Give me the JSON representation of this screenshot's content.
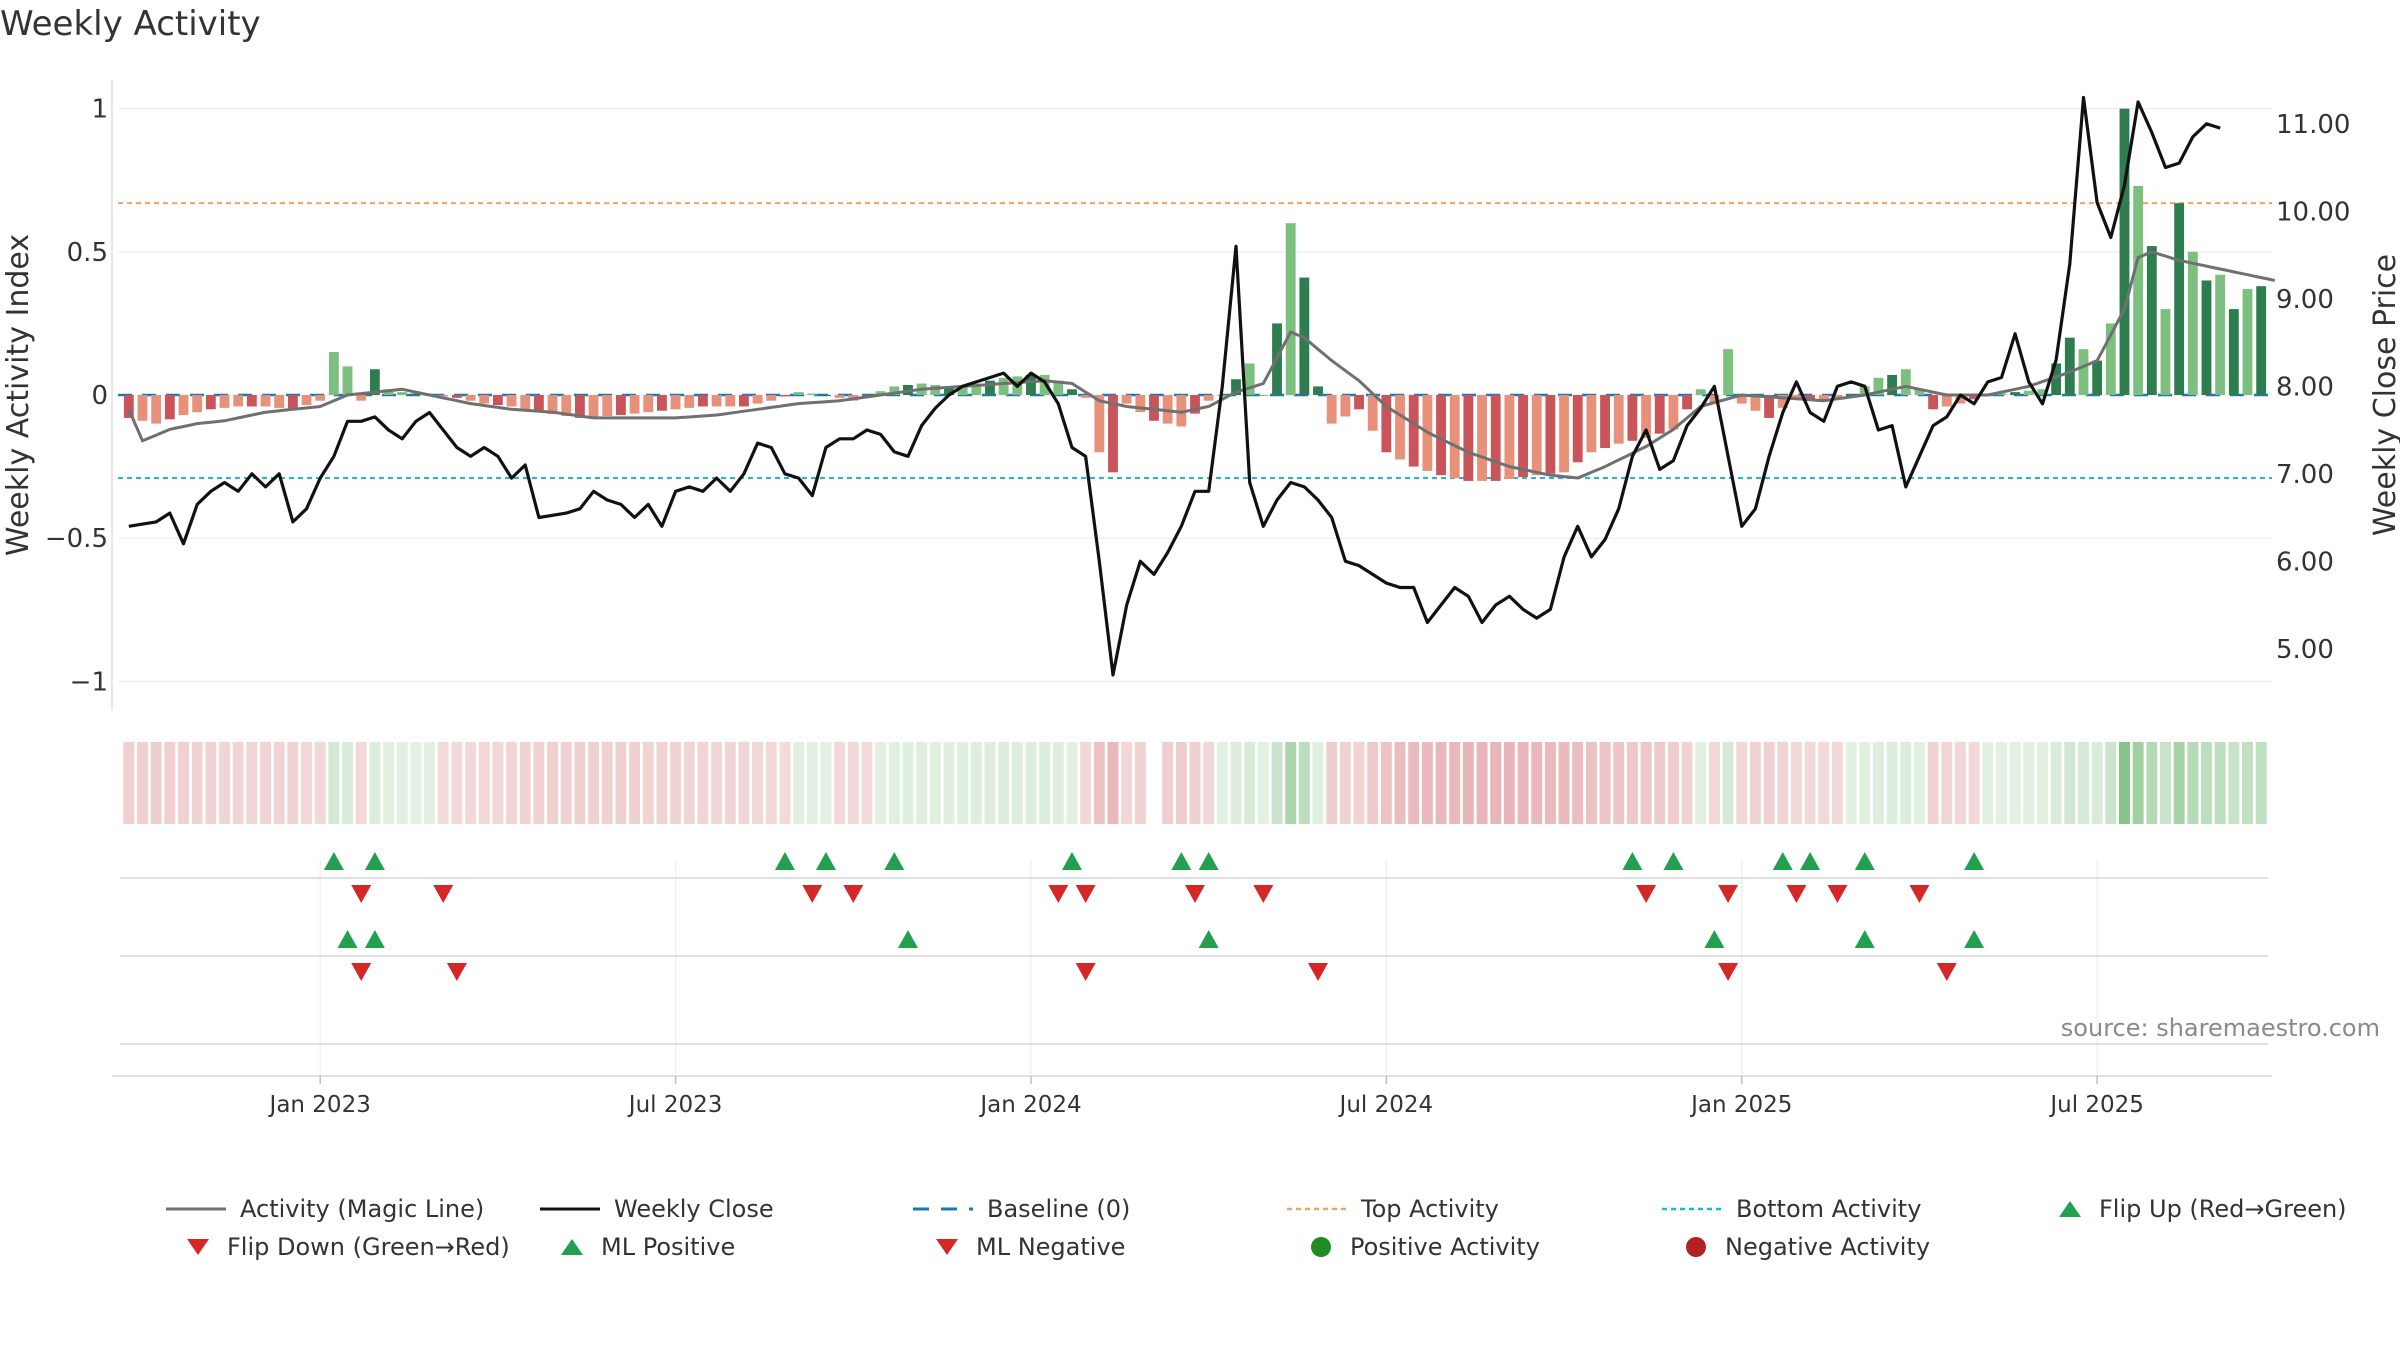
{
  "colors": {
    "strong_green": "#2e7d4f",
    "light_green": "#7dbf7f",
    "strong_red": "#c9555a",
    "light_red": "#e8917a",
    "magic_line": "#707070",
    "close_line": "#111111",
    "baseline": "#1f77b4",
    "top_activity": "#f4a261",
    "bottom_activity": "#17becf",
    "marker_green": "#22a050",
    "marker_red": "#d62728",
    "dot_green": "#228b22",
    "dot_red": "#b22222"
  },
  "chart_data": {
    "type": "bar",
    "title": "Weekly Activity",
    "ylabel": "Weekly Activity Index",
    "y2label": "Weekly Close Price",
    "ylim": [
      -1.1,
      1.1
    ],
    "y2lim": [
      4.3,
      11.5
    ],
    "yticks": [
      "1",
      "0.5",
      "0",
      "−0.5",
      "−1"
    ],
    "ytick_values": [
      1,
      0.5,
      0,
      -0.5,
      -1
    ],
    "y2ticks": [
      "11.00",
      "10.00",
      "9.00",
      "8.00",
      "7.00",
      "6.00",
      "5.00"
    ],
    "y2tick_values": [
      11,
      10,
      9,
      8,
      7,
      6,
      5
    ],
    "top_activity": 0.67,
    "bottom_activity": -0.29,
    "weeks_total": 157,
    "xlabels": [
      "Jan 2023",
      "Jul 2023",
      "Jan 2024",
      "Jul 2024",
      "Jan 2025",
      "Jul 2025"
    ],
    "xlabel_weeks": [
      14,
      40,
      66,
      92,
      118,
      144
    ],
    "activity_anchors": [
      [
        0,
        -0.08
      ],
      [
        2,
        -0.1
      ],
      [
        4,
        -0.07
      ],
      [
        6,
        -0.05
      ],
      [
        8,
        -0.04
      ],
      [
        10,
        -0.04
      ],
      [
        12,
        -0.05
      ],
      [
        14,
        -0.02
      ],
      [
        15,
        0.15
      ],
      [
        16,
        0.1
      ],
      [
        17,
        -0.02
      ],
      [
        18,
        0.09
      ],
      [
        19,
        0.02
      ],
      [
        20,
        0.01
      ],
      [
        22,
        0.0
      ],
      [
        24,
        -0.01
      ],
      [
        26,
        -0.03
      ],
      [
        28,
        -0.04
      ],
      [
        30,
        -0.06
      ],
      [
        33,
        -0.08
      ],
      [
        36,
        -0.07
      ],
      [
        38,
        -0.06
      ],
      [
        40,
        -0.05
      ],
      [
        42,
        -0.04
      ],
      [
        45,
        -0.04
      ],
      [
        47,
        -0.02
      ],
      [
        49,
        0.01
      ],
      [
        51,
        0.0
      ],
      [
        53,
        -0.02
      ],
      [
        56,
        0.03
      ],
      [
        58,
        0.04
      ],
      [
        60,
        0.03
      ],
      [
        62,
        0.04
      ],
      [
        64,
        0.06
      ],
      [
        66,
        0.07
      ],
      [
        67,
        0.07
      ],
      [
        68,
        0.05
      ],
      [
        70,
        -0.01
      ],
      [
        71,
        -0.2
      ],
      [
        72,
        -0.27
      ],
      [
        73,
        -0.03
      ],
      [
        75,
        -0.09
      ],
      [
        77,
        -0.11
      ],
      [
        79,
        -0.02
      ],
      [
        80,
        0.0
      ],
      [
        82,
        0.11
      ],
      [
        83,
        0.0
      ],
      [
        84,
        0.25
      ],
      [
        85,
        0.6
      ],
      [
        86,
        0.41
      ],
      [
        87,
        0.03
      ],
      [
        88,
        -0.1
      ],
      [
        90,
        -0.05
      ],
      [
        92,
        -0.2
      ],
      [
        94,
        -0.25
      ],
      [
        96,
        -0.28
      ],
      [
        98,
        -0.3
      ],
      [
        100,
        -0.3
      ],
      [
        103,
        -0.28
      ],
      [
        105,
        -0.27
      ],
      [
        107,
        -0.2
      ],
      [
        109,
        -0.17
      ],
      [
        111,
        -0.15
      ],
      [
        113,
        -0.12
      ],
      [
        115,
        0.02
      ],
      [
        116,
        -0.03
      ],
      [
        117,
        0.16
      ],
      [
        118,
        -0.03
      ],
      [
        120,
        -0.08
      ],
      [
        122,
        -0.01
      ],
      [
        124,
        -0.02
      ],
      [
        126,
        0.0
      ],
      [
        128,
        0.06
      ],
      [
        129,
        0.07
      ],
      [
        130,
        0.09
      ],
      [
        132,
        -0.05
      ],
      [
        134,
        -0.03
      ],
      [
        136,
        0.0
      ],
      [
        138,
        0.01
      ],
      [
        140,
        0.02
      ],
      [
        142,
        0.2
      ],
      [
        144,
        0.12
      ],
      [
        145,
        0.25
      ],
      [
        146,
        1.0
      ],
      [
        147,
        0.73
      ],
      [
        148,
        0.52
      ],
      [
        149,
        0.3
      ],
      [
        150,
        0.67
      ],
      [
        151,
        0.5
      ],
      [
        152,
        0.4
      ],
      [
        153,
        0.42
      ],
      [
        154,
        0.3
      ],
      [
        155,
        0.37
      ],
      [
        156,
        0.38
      ],
      [
        157,
        0.37
      ]
    ],
    "magic_anchors": [
      [
        0,
        -0.05
      ],
      [
        1,
        -0.16
      ],
      [
        3,
        -0.12
      ],
      [
        5,
        -0.1
      ],
      [
        7,
        -0.09
      ],
      [
        10,
        -0.06
      ],
      [
        12,
        -0.05
      ],
      [
        14,
        -0.04
      ],
      [
        16,
        0.0
      ],
      [
        18,
        0.01
      ],
      [
        20,
        0.02
      ],
      [
        22,
        0.0
      ],
      [
        25,
        -0.03
      ],
      [
        28,
        -0.05
      ],
      [
        31,
        -0.06
      ],
      [
        34,
        -0.08
      ],
      [
        37,
        -0.08
      ],
      [
        40,
        -0.08
      ],
      [
        43,
        -0.07
      ],
      [
        46,
        -0.05
      ],
      [
        49,
        -0.03
      ],
      [
        52,
        -0.02
      ],
      [
        55,
        0.0
      ],
      [
        58,
        0.02
      ],
      [
        61,
        0.03
      ],
      [
        64,
        0.04
      ],
      [
        67,
        0.05
      ],
      [
        69,
        0.04
      ],
      [
        71,
        -0.02
      ],
      [
        73,
        -0.04
      ],
      [
        75,
        -0.05
      ],
      [
        77,
        -0.06
      ],
      [
        79,
        -0.04
      ],
      [
        81,
        0.01
      ],
      [
        83,
        0.04
      ],
      [
        85,
        0.22
      ],
      [
        86,
        0.2
      ],
      [
        88,
        0.12
      ],
      [
        90,
        0.05
      ],
      [
        92,
        -0.04
      ],
      [
        95,
        -0.13
      ],
      [
        98,
        -0.2
      ],
      [
        101,
        -0.25
      ],
      [
        104,
        -0.28
      ],
      [
        106,
        -0.29
      ],
      [
        108,
        -0.25
      ],
      [
        111,
        -0.18
      ],
      [
        113,
        -0.12
      ],
      [
        115,
        -0.04
      ],
      [
        118,
        0.0
      ],
      [
        121,
        -0.01
      ],
      [
        124,
        -0.02
      ],
      [
        127,
        0.0
      ],
      [
        130,
        0.03
      ],
      [
        133,
        0.0
      ],
      [
        136,
        0.0
      ],
      [
        139,
        0.03
      ],
      [
        142,
        0.08
      ],
      [
        144,
        0.12
      ],
      [
        146,
        0.3
      ],
      [
        147,
        0.48
      ],
      [
        148,
        0.5
      ],
      [
        150,
        0.47
      ],
      [
        152,
        0.45
      ],
      [
        154,
        0.43
      ],
      [
        156,
        0.41
      ],
      [
        157,
        0.4
      ]
    ],
    "close_anchors": [
      [
        0,
        6.4
      ],
      [
        2,
        6.45
      ],
      [
        3,
        6.55
      ],
      [
        4,
        6.2
      ],
      [
        5,
        6.65
      ],
      [
        6,
        6.8
      ],
      [
        7,
        6.9
      ],
      [
        8,
        6.8
      ],
      [
        9,
        7.0
      ],
      [
        10,
        6.85
      ],
      [
        11,
        7.0
      ],
      [
        12,
        6.45
      ],
      [
        13,
        6.6
      ],
      [
        14,
        6.95
      ],
      [
        15,
        7.2
      ],
      [
        16,
        7.6
      ],
      [
        17,
        7.6
      ],
      [
        18,
        7.65
      ],
      [
        19,
        7.5
      ],
      [
        20,
        7.4
      ],
      [
        21,
        7.6
      ],
      [
        22,
        7.7
      ],
      [
        23,
        7.5
      ],
      [
        24,
        7.3
      ],
      [
        25,
        7.2
      ],
      [
        26,
        7.3
      ],
      [
        27,
        7.2
      ],
      [
        28,
        6.95
      ],
      [
        29,
        7.1
      ],
      [
        30,
        6.5
      ],
      [
        32,
        6.55
      ],
      [
        33,
        6.6
      ],
      [
        34,
        6.8
      ],
      [
        35,
        6.7
      ],
      [
        36,
        6.65
      ],
      [
        37,
        6.5
      ],
      [
        38,
        6.65
      ],
      [
        39,
        6.4
      ],
      [
        40,
        6.8
      ],
      [
        41,
        6.85
      ],
      [
        42,
        6.8
      ],
      [
        43,
        6.95
      ],
      [
        44,
        6.8
      ],
      [
        45,
        7.0
      ],
      [
        46,
        7.35
      ],
      [
        47,
        7.3
      ],
      [
        48,
        7.0
      ],
      [
        49,
        6.95
      ],
      [
        50,
        6.75
      ],
      [
        51,
        7.3
      ],
      [
        52,
        7.4
      ],
      [
        53,
        7.4
      ],
      [
        54,
        7.5
      ],
      [
        55,
        7.45
      ],
      [
        56,
        7.25
      ],
      [
        57,
        7.2
      ],
      [
        58,
        7.55
      ],
      [
        59,
        7.75
      ],
      [
        60,
        7.9
      ],
      [
        61,
        8.0
      ],
      [
        62,
        8.05
      ],
      [
        63,
        8.1
      ],
      [
        64,
        8.15
      ],
      [
        65,
        8.0
      ],
      [
        66,
        8.15
      ],
      [
        67,
        8.05
      ],
      [
        68,
        7.8
      ],
      [
        69,
        7.3
      ],
      [
        70,
        7.2
      ],
      [
        71,
        6.0
      ],
      [
        72,
        4.7
      ],
      [
        73,
        5.5
      ],
      [
        74,
        6.0
      ],
      [
        75,
        5.85
      ],
      [
        76,
        6.1
      ],
      [
        77,
        6.4
      ],
      [
        78,
        6.8
      ],
      [
        79,
        6.8
      ],
      [
        80,
        8.0
      ],
      [
        81,
        9.6
      ],
      [
        82,
        6.9
      ],
      [
        83,
        6.4
      ],
      [
        84,
        6.7
      ],
      [
        85,
        6.9
      ],
      [
        86,
        6.85
      ],
      [
        87,
        6.7
      ],
      [
        88,
        6.5
      ],
      [
        89,
        6.0
      ],
      [
        90,
        5.95
      ],
      [
        91,
        5.85
      ],
      [
        92,
        5.75
      ],
      [
        93,
        5.7
      ],
      [
        94,
        5.7
      ],
      [
        95,
        5.3
      ],
      [
        96,
        5.5
      ],
      [
        97,
        5.7
      ],
      [
        98,
        5.6
      ],
      [
        99,
        5.3
      ],
      [
        100,
        5.5
      ],
      [
        101,
        5.6
      ],
      [
        102,
        5.45
      ],
      [
        103,
        5.35
      ],
      [
        104,
        5.45
      ],
      [
        105,
        6.05
      ],
      [
        106,
        6.4
      ],
      [
        107,
        6.05
      ],
      [
        108,
        6.25
      ],
      [
        109,
        6.6
      ],
      [
        110,
        7.2
      ],
      [
        111,
        7.5
      ],
      [
        112,
        7.05
      ],
      [
        113,
        7.15
      ],
      [
        114,
        7.55
      ],
      [
        115,
        7.75
      ],
      [
        116,
        8.0
      ],
      [
        117,
        7.2
      ],
      [
        118,
        6.4
      ],
      [
        119,
        6.6
      ],
      [
        120,
        7.2
      ],
      [
        121,
        7.7
      ],
      [
        122,
        8.05
      ],
      [
        123,
        7.7
      ],
      [
        124,
        7.6
      ],
      [
        125,
        8.0
      ],
      [
        126,
        8.05
      ],
      [
        127,
        8.0
      ],
      [
        128,
        7.5
      ],
      [
        129,
        7.55
      ],
      [
        130,
        6.85
      ],
      [
        131,
        7.2
      ],
      [
        132,
        7.55
      ],
      [
        133,
        7.65
      ],
      [
        134,
        7.9
      ],
      [
        135,
        7.8
      ],
      [
        136,
        8.05
      ],
      [
        137,
        8.1
      ],
      [
        138,
        8.6
      ],
      [
        139,
        8.05
      ],
      [
        140,
        7.8
      ],
      [
        141,
        8.3
      ],
      [
        142,
        9.4
      ],
      [
        143,
        11.3
      ],
      [
        144,
        10.1
      ],
      [
        145,
        9.7
      ],
      [
        146,
        10.3
      ],
      [
        147,
        11.25
      ],
      [
        148,
        10.9
      ],
      [
        149,
        10.5
      ],
      [
        150,
        10.55
      ],
      [
        151,
        10.85
      ],
      [
        152,
        11.0
      ],
      [
        153,
        10.95
      ]
    ],
    "series": [
      {
        "name": "Activity (Magic Line)"
      },
      {
        "name": "Weekly Close"
      }
    ],
    "markers": {
      "flip_up": [
        15,
        18,
        48,
        51,
        56,
        69,
        77,
        79,
        110,
        113,
        121,
        123,
        127,
        135
      ],
      "flip_down": [
        17,
        23,
        50,
        53,
        68,
        70,
        78,
        83,
        111,
        117,
        122,
        125,
        131
      ],
      "ml_positive": [
        16,
        18,
        57,
        79,
        116,
        127,
        135
      ],
      "ml_negative": [
        17,
        24,
        70,
        87,
        117,
        133
      ]
    }
  },
  "source": "source: sharemaestro.com",
  "legend": [
    {
      "label": "Activity (Magic Line)",
      "symbol": "line-grey"
    },
    {
      "label": "Weekly Close",
      "symbol": "line-black"
    },
    {
      "label": "Baseline (0)",
      "symbol": "dash-blue"
    },
    {
      "label": "Top Activity",
      "symbol": "dot-orange"
    },
    {
      "label": "Bottom Activity",
      "symbol": "dot-cyan"
    },
    {
      "label": "Flip Up (Red→Green)",
      "symbol": "triangle-up"
    },
    {
      "label": "Flip Down (Green→Red)",
      "symbol": "triangle-down"
    },
    {
      "label": "ML Positive",
      "symbol": "triangle-up"
    },
    {
      "label": "ML Negative",
      "symbol": "triangle-down"
    },
    {
      "label": "Positive Activity",
      "symbol": "circle-green"
    },
    {
      "label": "Negative Activity",
      "symbol": "circle-red"
    }
  ]
}
